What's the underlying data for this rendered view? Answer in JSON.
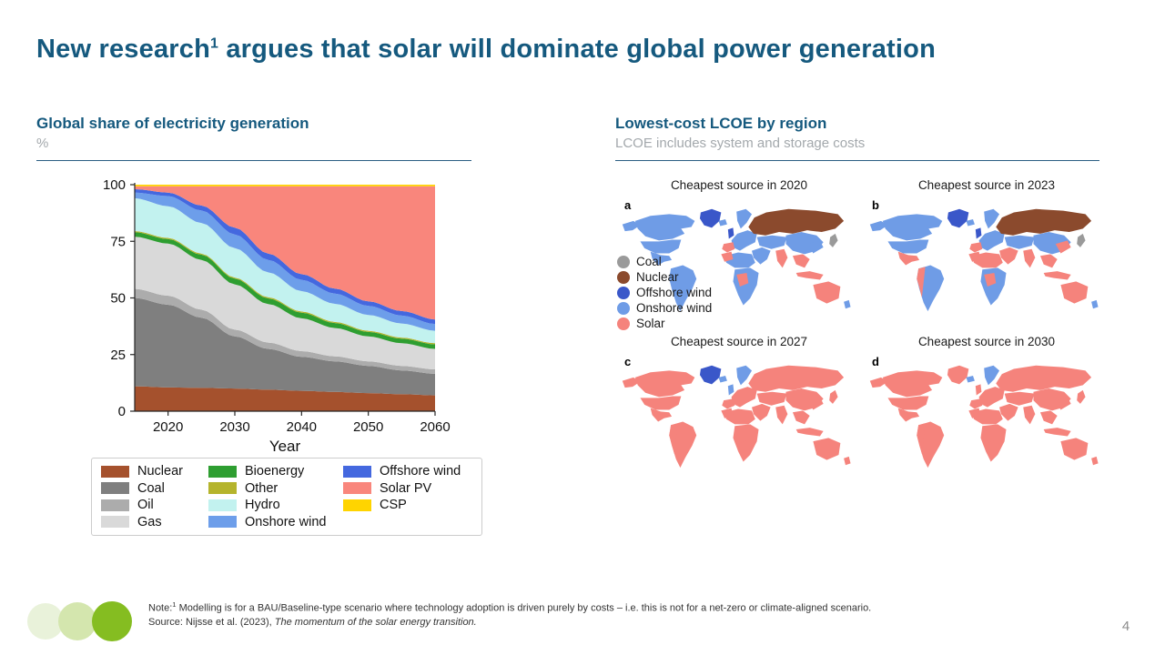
{
  "slide": {
    "title_pre": "New research",
    "title_sup": "1",
    "title_post": " argues that solar will dominate global power generation",
    "page_number": "4"
  },
  "left_panel": {
    "heading": "Global share of electricity generation",
    "unit": "%"
  },
  "right_panel": {
    "heading": "Lowest-cost LCOE by region",
    "subheading": "LCOE includes system and storage costs"
  },
  "footer": {
    "note_label": "Note:",
    "note_sup": "1",
    "note_text": " Modelling is for a BAU/Baseline-type scenario where technology adoption is driven purely by costs – i.e. this is not for a net-zero or climate-aligned scenario.",
    "source_prefix": "Source: Nijsse et al. (2023), ",
    "source_title": "The momentum of the solar energy transition."
  },
  "colors": {
    "accent_blue": "#15597E",
    "deco_circles": [
      "#E9F2DA",
      "#D4E6AE",
      "#85BD21"
    ]
  },
  "chart_data": [
    {
      "type": "area",
      "title": "Global share of electricity generation",
      "xlabel": "Year",
      "ylabel": "%",
      "stacked": true,
      "x": [
        2015,
        2020,
        2025,
        2030,
        2035,
        2040,
        2045,
        2050,
        2055,
        2060
      ],
      "xticks": [
        2020,
        2030,
        2040,
        2050,
        2060
      ],
      "yticks": [
        0,
        25,
        50,
        75,
        100
      ],
      "ylim": [
        0,
        100
      ],
      "legend_position": "below",
      "series": [
        {
          "name": "Nuclear",
          "color": "#A5512D",
          "values": [
            11,
            10.5,
            10.3,
            10,
            9.5,
            9,
            8.5,
            8,
            7.5,
            7
          ]
        },
        {
          "name": "Coal",
          "color": "#7F7F7F",
          "values": [
            39,
            36.5,
            31,
            23,
            18,
            15,
            13.5,
            12,
            10.5,
            9.5
          ]
        },
        {
          "name": "Oil",
          "color": "#ACACAC",
          "values": [
            4,
            4,
            3.5,
            3,
            2.8,
            2.5,
            2.2,
            2,
            2,
            2
          ]
        },
        {
          "name": "Gas",
          "color": "#D9D9D9",
          "values": [
            23,
            23,
            22,
            20,
            17,
            14.5,
            12.5,
            11,
            10,
            9
          ]
        },
        {
          "name": "Bioenergy",
          "color": "#2E9E31",
          "values": [
            2,
            2,
            2.3,
            2.5,
            2.5,
            2.5,
            2.2,
            2,
            2,
            2
          ]
        },
        {
          "name": "Other",
          "color": "#B5B42C",
          "values": [
            0.5,
            0.5,
            0.5,
            0.5,
            0.5,
            0.5,
            0.5,
            0.5,
            0.5,
            0.5
          ]
        },
        {
          "name": "Hydro",
          "color": "#C2F2EF",
          "values": [
            14.5,
            14,
            13.5,
            13,
            11,
            9,
            8,
            7,
            6.2,
            5.5
          ]
        },
        {
          "name": "Onshore wind",
          "color": "#6D9EEA",
          "values": [
            2.5,
            4.5,
            5.5,
            6,
            5.5,
            5,
            4.5,
            4,
            3.5,
            3
          ]
        },
        {
          "name": "Offshore wind",
          "color": "#4468DF",
          "values": [
            1.5,
            1.5,
            2.2,
            3,
            2.8,
            2.5,
            2.2,
            2,
            2,
            2
          ]
        },
        {
          "name": "Solar PV",
          "color": "#F9867C",
          "values": [
            1.3,
            2.8,
            8.5,
            18.3,
            29.7,
            38.8,
            45.2,
            50.8,
            55.1,
            58.8
          ]
        },
        {
          "name": "CSP",
          "color": "#FFD400",
          "values": [
            0.7,
            0.7,
            0.7,
            0.7,
            0.7,
            0.7,
            0.7,
            0.7,
            0.7,
            0.7
          ]
        }
      ]
    },
    {
      "type": "heatmap",
      "subtype": "categorical-world-choropleth",
      "title": "Lowest-cost LCOE by region",
      "palette": {
        "coal": "#9A9A9A",
        "nuclear": "#8B4A2D",
        "offshore": "#3A57C9",
        "onshore": "#6F9CE6",
        "solar": "#F5837C"
      },
      "legend": [
        {
          "key": "coal",
          "label": "Coal"
        },
        {
          "key": "nuclear",
          "label": "Nuclear"
        },
        {
          "key": "offshore",
          "label": "Offshore wind"
        },
        {
          "key": "onshore",
          "label": "Onshore wind"
        },
        {
          "key": "solar",
          "label": "Solar"
        }
      ],
      "panels": [
        {
          "letter": "a",
          "title": "Cheapest source in 2020",
          "default": "onshore",
          "regions": {
            "greenland": "offshore",
            "uk": "offshore",
            "iberia": "solar",
            "russia": "nuclear",
            "maghreb": "solar",
            "congo": "solar",
            "india": "solar",
            "se_asia": "solar",
            "indonesia": "solar",
            "japan": "coal",
            "australia": "solar"
          }
        },
        {
          "letter": "b",
          "title": "Cheapest source in 2023",
          "default": "onshore",
          "regions": {
            "greenland": "offshore",
            "uk": "offshore",
            "iberia": "solar",
            "russia": "nuclear",
            "mexico": "solar",
            "andes": "solar",
            "middle_east": "solar",
            "north_africa": "solar",
            "maghreb": "solar",
            "congo": "solar",
            "india": "solar",
            "china_east": "solar",
            "se_asia": "solar",
            "indonesia": "solar",
            "japan": "coal",
            "australia": "solar"
          }
        },
        {
          "letter": "c",
          "title": "Cheapest source in 2027",
          "default": "solar",
          "regions": {
            "greenland": "offshore",
            "scandinavia": "onshore",
            "uk": "onshore",
            "iceland": "onshore"
          }
        },
        {
          "letter": "d",
          "title": "Cheapest source in 2030",
          "default": "solar",
          "regions": {
            "scandinavia": "onshore",
            "iceland": "onshore"
          }
        }
      ]
    }
  ]
}
